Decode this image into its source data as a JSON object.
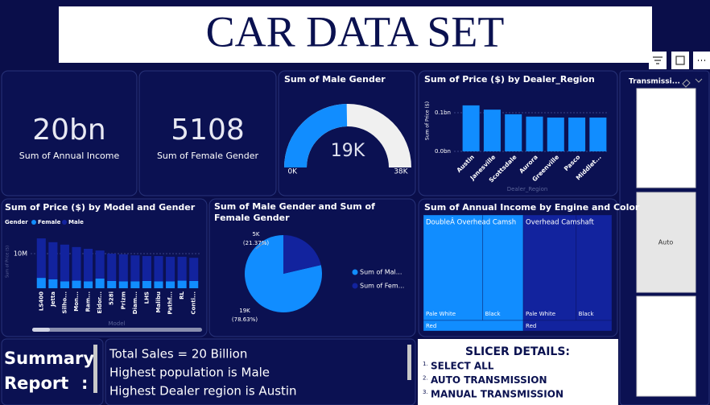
{
  "header": {
    "title": "CAR DATA SET"
  },
  "cards": [
    {
      "value": "20bn",
      "label": "Sum of Annual Income"
    },
    {
      "value": "5108",
      "label": "Sum of Female Gender"
    }
  ],
  "chart_data": [
    {
      "type": "gauge",
      "title": "Sum of Male Gender",
      "value": 18795,
      "value_label": "19K",
      "ylim": [
        0,
        38000
      ],
      "ticks": [
        {
          "value": 0,
          "label": "0K"
        },
        {
          "value": 38000,
          "label": "38K"
        }
      ],
      "color": "#118dff",
      "track_color": "#f0f0f0"
    },
    {
      "type": "bar",
      "title": "Sum of Price ($) by Dealer_Region",
      "y_label": "Sum of Price ($)",
      "x_label": "Dealer_Region",
      "categories": [
        "Austin",
        "Janesville",
        "Scottsdale",
        "Aurora",
        "Greenville",
        "Pasco",
        "Middlet..."
      ],
      "values": [
        0.119,
        0.108,
        0.096,
        0.09,
        0.0875,
        0.0875,
        0.0875
      ],
      "color": "#118dff",
      "ylim": [
        0,
        0.14
      ],
      "yticks": [
        {
          "value": 0,
          "label": "0.0bn"
        },
        {
          "value": 0.1,
          "label": "0.1bn"
        }
      ],
      "grid": true
    },
    {
      "type": "stacked_bar",
      "title": "Sum of Price ($) by Model and Gender",
      "legend_title": "Gender",
      "y_label": "Sum of Price ($)",
      "x_label": "Model",
      "categories": [
        "LS400",
        "Jetta",
        "Silho...",
        "Mon...",
        "Ram...",
        "Eldor...",
        "528i",
        "Prizm",
        "Diam...",
        "LHS",
        "Malibu",
        "Pathf...",
        "RL",
        "Conti..."
      ],
      "series": [
        {
          "name": "Female",
          "color": "#118dff",
          "values": [
            3.0,
            2.6,
            2.0,
            2.2,
            2.0,
            2.8,
            2.1,
            2.0,
            2.0,
            2.1,
            2.0,
            2.0,
            2.2,
            2.1
          ]
        },
        {
          "name": "Male",
          "color": "#12239e",
          "values": [
            11.4,
            10.7,
            10.6,
            9.7,
            9.4,
            8.1,
            7.9,
            7.8,
            7.5,
            7.2,
            7.3,
            7.1,
            6.9,
            6.7
          ]
        }
      ],
      "ylim": [
        0,
        16
      ],
      "yticks": [
        {
          "value": 10,
          "label": "10M"
        }
      ],
      "grid": true
    },
    {
      "type": "pie",
      "title": "Sum of Male Gender and Sum of Female Gender",
      "categories": [
        "Sum of Mal...",
        "Sum of Fem..."
      ],
      "values": [
        18795,
        5108
      ],
      "value_labels": [
        "19K",
        "5K"
      ],
      "percent_labels": [
        "(78.63%)",
        "(21.37%)"
      ],
      "colors": [
        "#118dff",
        "#12239e"
      ]
    },
    {
      "type": "treemap",
      "title": "Sum of Annual Income by Engine and Color",
      "groups": [
        {
          "name": "DoubleÂ Overhead Camsh",
          "color": "#118dff",
          "items": [
            {
              "name": "Pale White",
              "value": 5.72
            },
            {
              "name": "Black",
              "value": 3.92
            },
            {
              "name": "Red",
              "value": 0.96
            }
          ]
        },
        {
          "name": "Overhead Camshaft",
          "color": "#12239e",
          "items": [
            {
              "name": "Pale White",
              "value": 5.1
            },
            {
              "name": "Black",
              "value": 3.45
            },
            {
              "name": "Red",
              "value": 0.85
            }
          ]
        }
      ]
    }
  ],
  "slicer": {
    "title": "Transmissi...",
    "option": "Auto"
  },
  "summary": {
    "heading": [
      "Summary",
      "Report"
    ],
    "colon": ":",
    "lines": [
      "Total Sales = 20 Billion",
      "Highest population is Male",
      "Highest Dealer region is Austin"
    ]
  },
  "slicer_details": {
    "title": "SLICER DETAILS:",
    "items": [
      {
        "marker": "1.",
        "text": "SELECT ALL"
      },
      {
        "marker": "2.",
        "text": "AUTO TRANSMISSION"
      },
      {
        "marker": "3.",
        "text": "MANUAL TRANSMISSION"
      }
    ]
  }
}
